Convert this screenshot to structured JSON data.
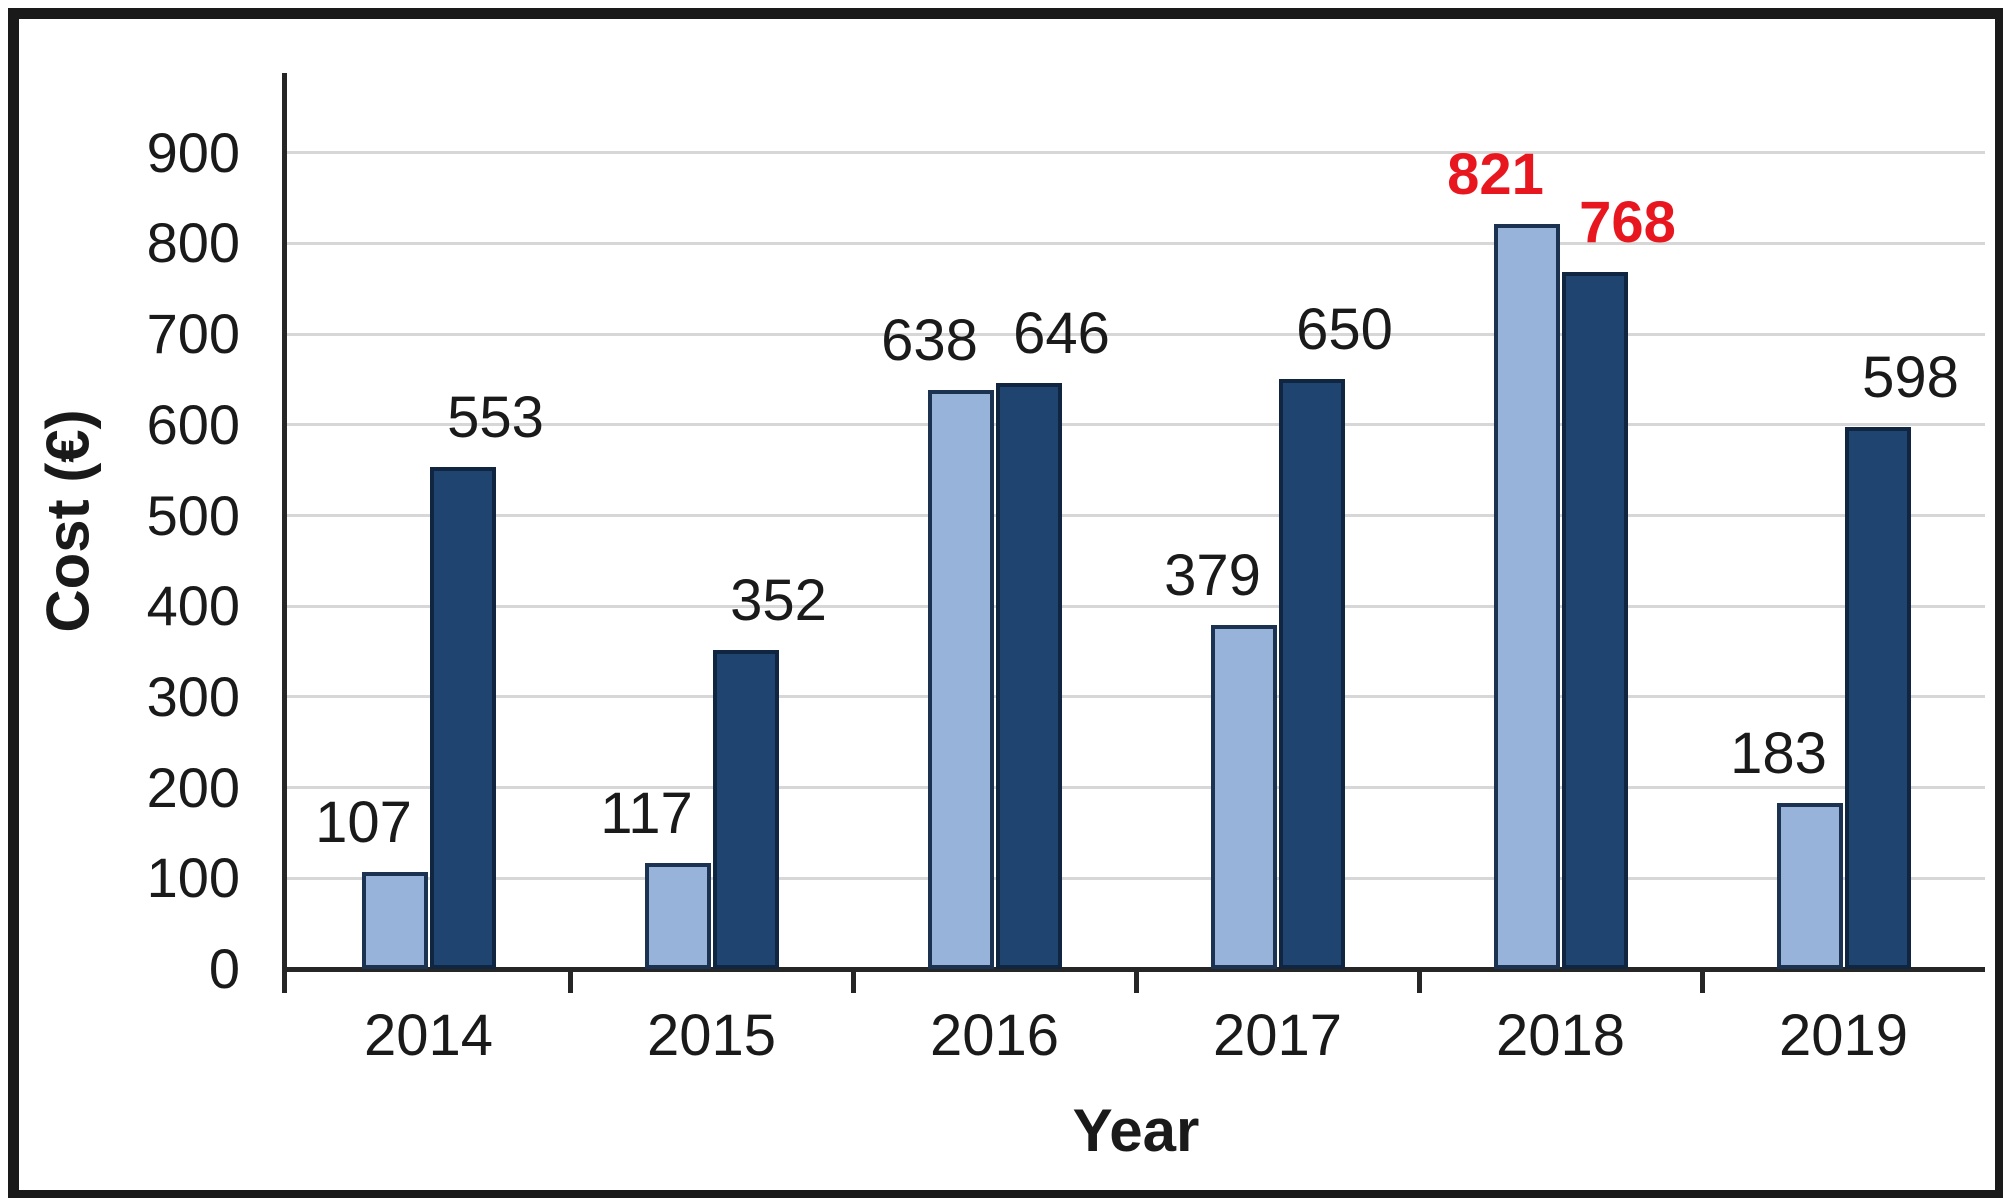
{
  "chart_data": {
    "type": "bar",
    "title": "",
    "xlabel": "Year",
    "ylabel": "Cost (€)",
    "categories": [
      "2014",
      "2015",
      "2016",
      "2017",
      "2018",
      "2019"
    ],
    "series": [
      {
        "name": "light-blue-bars",
        "color": "#97B3D9",
        "border_color": "#1B3350",
        "values": [
          107,
          117,
          638,
          379,
          821,
          183
        ]
      },
      {
        "name": "dark-blue-bars",
        "color": "#1F4470",
        "border_color": "#10253F",
        "values": [
          553,
          352,
          646,
          650,
          768,
          598
        ]
      }
    ],
    "value_labels_shown": true,
    "highlighted_category": "2018",
    "highlight_label_color": "#E8171F",
    "default_label_color": "#1a1a1a",
    "y_ticks": [
      0,
      100,
      200,
      300,
      400,
      500,
      600,
      700,
      800,
      900
    ],
    "ylim": [
      0,
      986
    ],
    "grid": "horizontal",
    "legend": "none",
    "axis_color": "#262626",
    "gridline_color": "#D7D7D7"
  }
}
